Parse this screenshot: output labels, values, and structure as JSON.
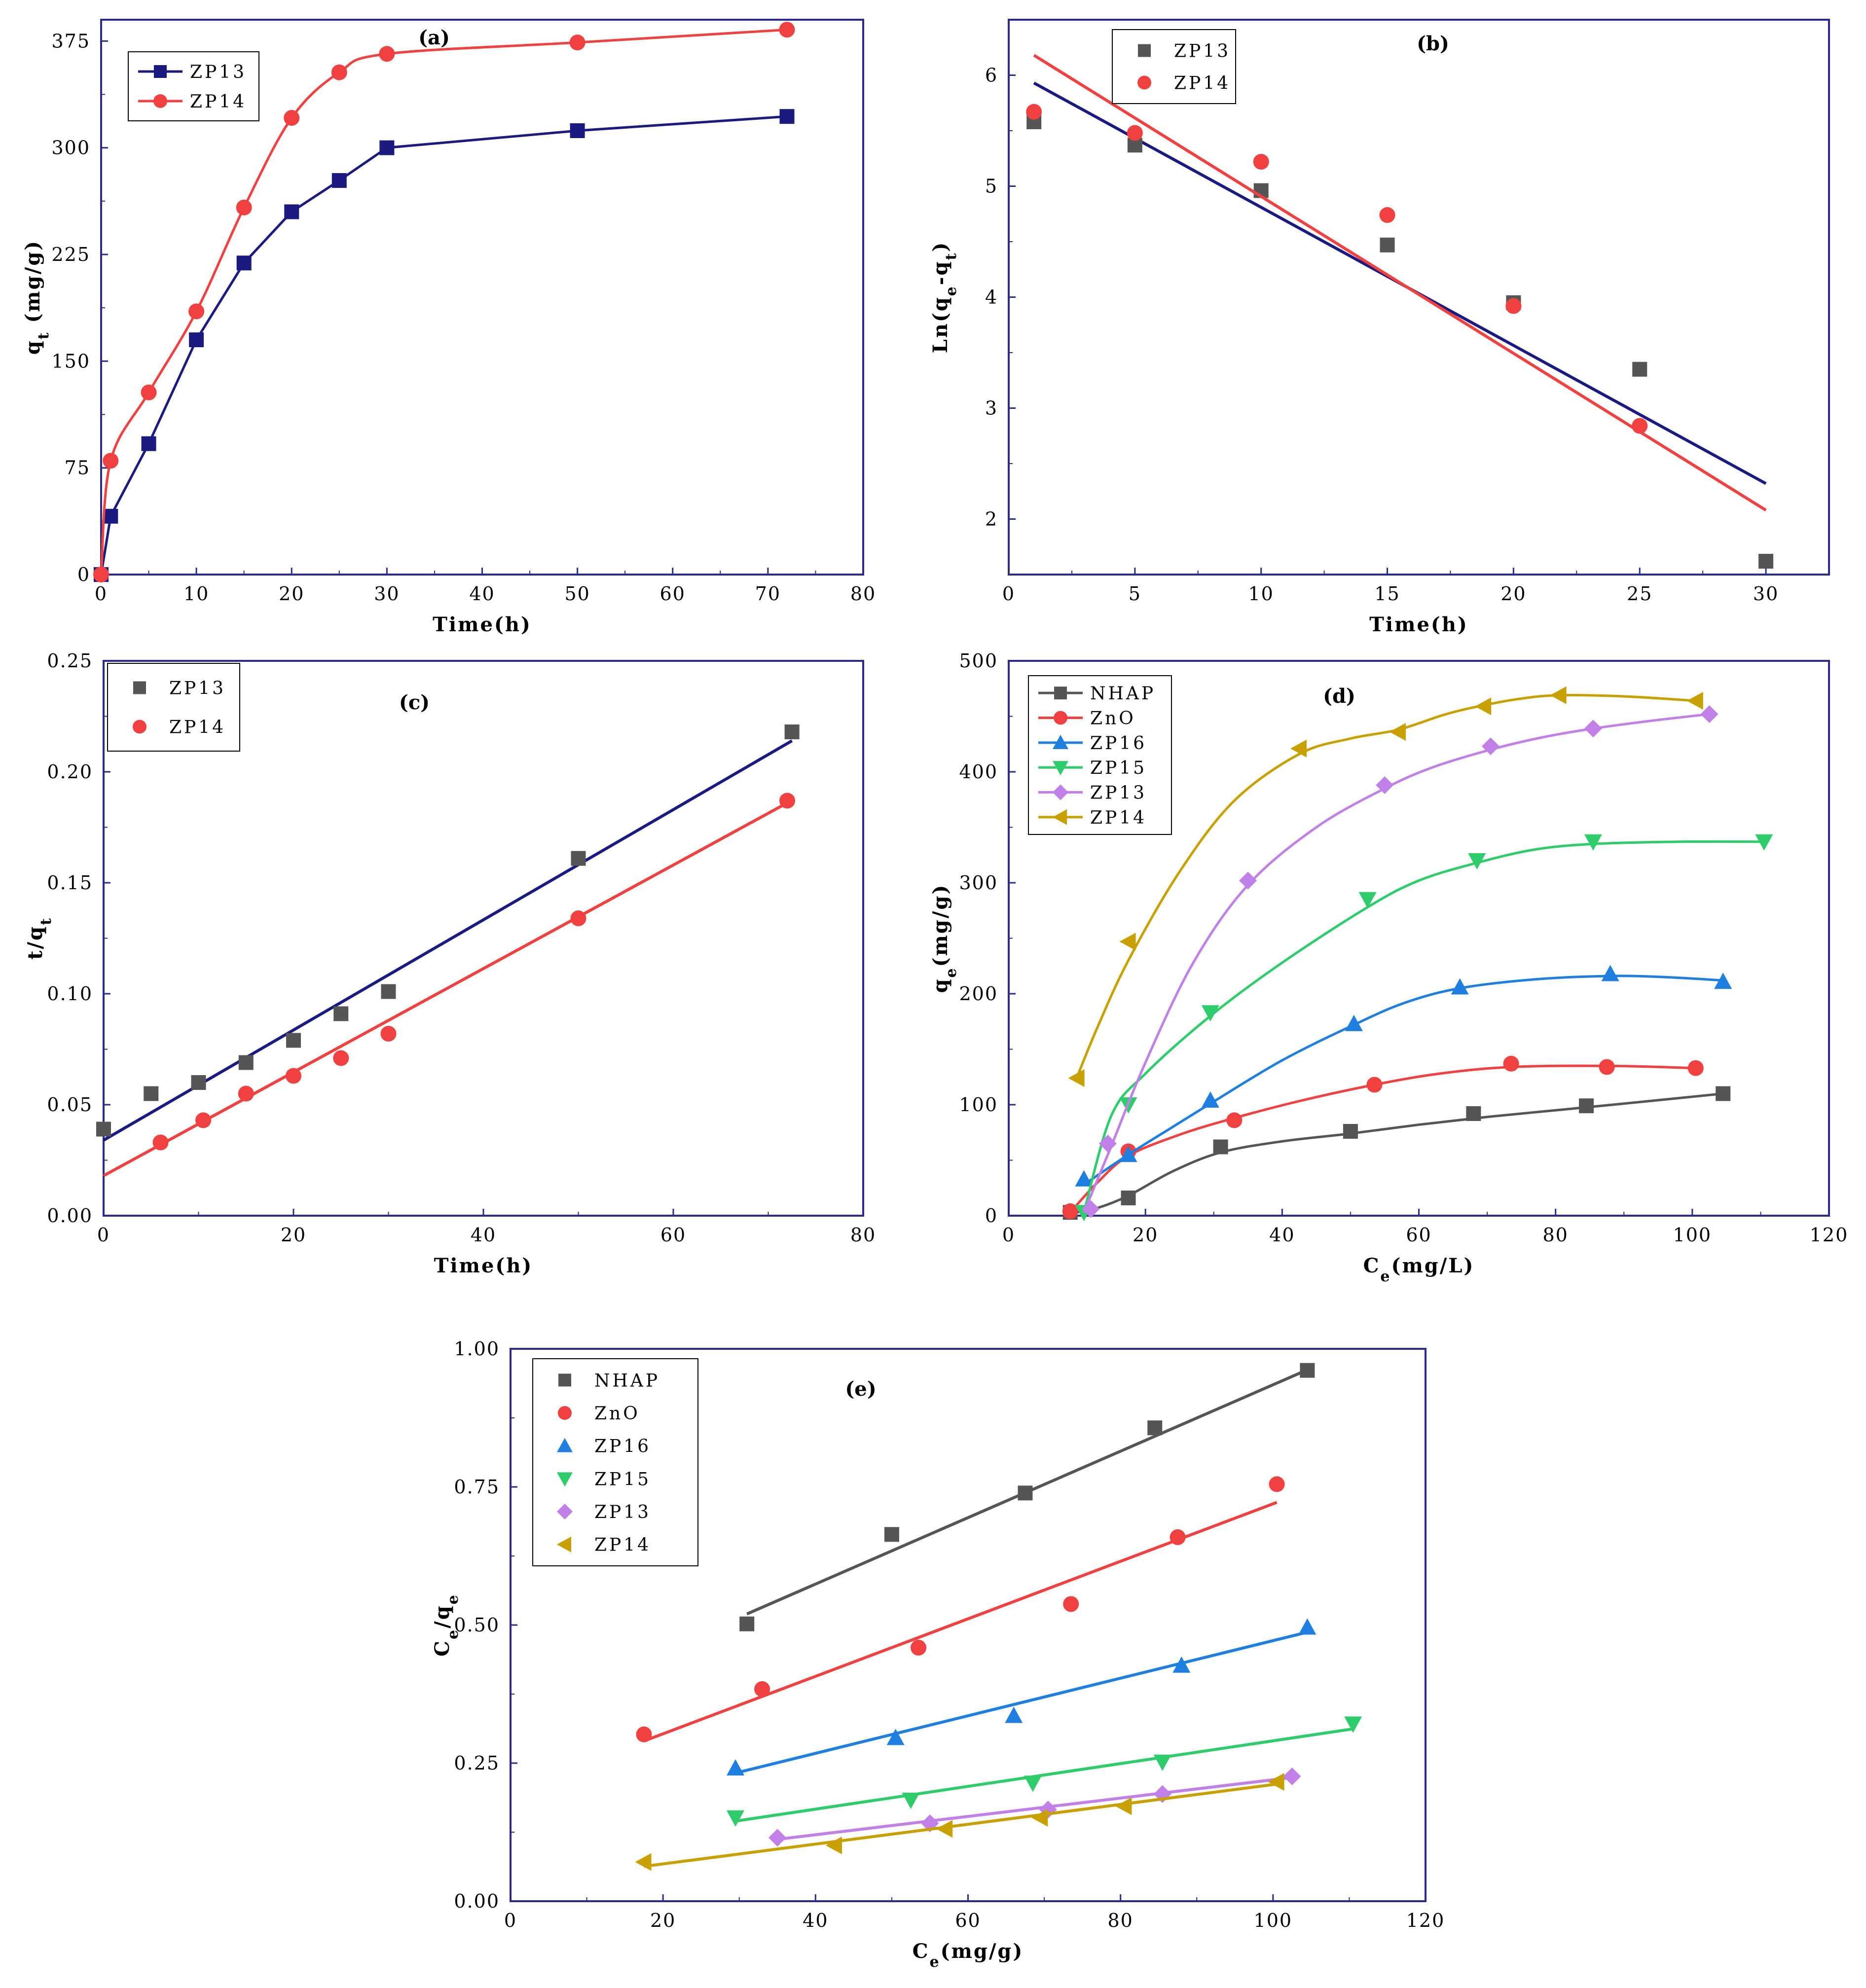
{
  "colors": {
    "frame": "#2b2b8f",
    "navy": "#1a1a80",
    "red": "#f04040",
    "gray": "#555555",
    "blue": "#1f7fe0",
    "green": "#2ecc6a",
    "purple": "#c080e8",
    "gold": "#c8a000"
  },
  "chart_data": [
    {
      "id": "a",
      "type": "line",
      "title": "(a)",
      "xlabel": "Time(h)",
      "ylabel": "q",
      "ylabel_sub": "t",
      "ylabel_tail": " (mg/g)",
      "xlim": [
        0,
        80
      ],
      "ylim": [
        0,
        390
      ],
      "xticks": [
        0,
        10,
        20,
        30,
        40,
        50,
        60,
        70,
        80
      ],
      "yticks": [
        0,
        75,
        150,
        225,
        300,
        375
      ],
      "legend_position": "top-left",
      "series": [
        {
          "name": "ZP13",
          "color": "navy",
          "marker": "square",
          "line": "polyline",
          "x": [
            0,
            1,
            5,
            10,
            15,
            20,
            25,
            30,
            50,
            72
          ],
          "y": [
            0,
            41,
            92,
            165,
            219,
            255,
            277,
            300,
            312,
            322
          ]
        },
        {
          "name": "ZP14",
          "color": "red",
          "marker": "circle",
          "line": "smooth",
          "x": [
            0,
            1,
            5,
            10,
            15,
            20,
            25,
            30,
            50,
            72
          ],
          "y": [
            0,
            80,
            128,
            185,
            258,
            321,
            353,
            366,
            374,
            383
          ]
        }
      ]
    },
    {
      "id": "b",
      "type": "scatter",
      "title": "(b)",
      "xlabel": "Time(h)",
      "ylabel": "Ln(q",
      "ylabel_sub": "e",
      "ylabel_tail": "-q",
      "ylabel_sub2": "t",
      "ylabel_end": ")",
      "xlim": [
        0,
        32.5
      ],
      "ylim": [
        1.5,
        6.5
      ],
      "xticks": [
        0,
        5,
        10,
        15,
        20,
        25,
        30
      ],
      "yticks": [
        2,
        3,
        4,
        5,
        6
      ],
      "legend_position": "top-left",
      "series": [
        {
          "name": "ZP13",
          "color": "gray",
          "marker": "square",
          "x": [
            1,
            5,
            10,
            15,
            20,
            25,
            30
          ],
          "y": [
            5.58,
            5.37,
            4.96,
            4.47,
            3.95,
            3.35,
            1.62
          ],
          "fit": {
            "color": "navy",
            "x": [
              1,
              30
            ],
            "y": [
              5.93,
              2.32
            ]
          }
        },
        {
          "name": "ZP14",
          "color": "red",
          "marker": "circle",
          "x": [
            1,
            5,
            10,
            15,
            20,
            25
          ],
          "y": [
            5.67,
            5.48,
            5.22,
            4.74,
            3.92,
            2.84
          ],
          "fit": {
            "color": "red",
            "x": [
              1,
              30
            ],
            "y": [
              6.18,
              2.08
            ]
          }
        }
      ]
    },
    {
      "id": "c",
      "type": "scatter",
      "title": "(c)",
      "xlabel": "Time(h)",
      "ylabel": "t/q",
      "ylabel_sub": "t",
      "ylabel_tail": "",
      "xlim": [
        0,
        80
      ],
      "ylim": [
        0,
        0.25
      ],
      "xticks": [
        0,
        20,
        40,
        60,
        80
      ],
      "yticks": [
        0.0,
        0.05,
        0.1,
        0.15,
        0.2,
        0.25
      ],
      "legend_position": "top-left",
      "series": [
        {
          "name": "ZP13",
          "color": "gray",
          "marker": "square",
          "x": [
            0,
            5,
            10,
            15,
            20,
            25,
            30,
            50,
            72.5
          ],
          "y": [
            0.039,
            0.055,
            0.06,
            0.069,
            0.079,
            0.091,
            0.101,
            0.161,
            0.218
          ],
          "fit": {
            "color": "navy",
            "x": [
              0,
              72.5
            ],
            "y": [
              0.034,
              0.214
            ]
          }
        },
        {
          "name": "ZP14",
          "color": "red",
          "marker": "circle",
          "x": [
            6,
            10.5,
            15,
            20,
            25,
            30,
            50,
            72
          ],
          "y": [
            0.033,
            0.043,
            0.055,
            0.063,
            0.071,
            0.082,
            0.134,
            0.187
          ],
          "fit": {
            "color": "red",
            "x": [
              0,
              72
            ],
            "y": [
              0.018,
              0.186
            ]
          }
        }
      ]
    },
    {
      "id": "d",
      "type": "line",
      "title": "(d)",
      "xlabel": "C",
      "xlabel_sub": "e",
      "xlabel_tail": "(mg/L)",
      "ylabel": "q",
      "ylabel_sub": "e",
      "ylabel_tail": "(mg/g)",
      "xlim": [
        0,
        120
      ],
      "ylim": [
        0,
        500
      ],
      "xticks": [
        0,
        20,
        40,
        60,
        80,
        100,
        120
      ],
      "yticks": [
        0,
        100,
        200,
        300,
        400,
        500
      ],
      "legend_position": "top-left",
      "series": [
        {
          "name": "NHAP",
          "color": "gray",
          "marker": "square",
          "x": [
            9,
            17.5,
            31,
            50,
            68,
            84.5,
            104.5
          ],
          "y": [
            3,
            16,
            62,
            76,
            92,
            99,
            110
          ],
          "curve": {
            "x": [
              9,
              13,
              17.5,
              24,
              31,
              40,
              50,
              60,
              70,
              80,
              90,
              104.5
            ],
            "y": [
              2,
              7,
              18,
              40,
              57,
              67,
              74,
              82,
              89,
              95,
              101,
              110
            ]
          }
        },
        {
          "name": "ZnO",
          "color": "red",
          "marker": "circle",
          "x": [
            9,
            17.5,
            33,
            53.5,
            73.5,
            87.5,
            100.5
          ],
          "y": [
            4,
            58,
            86,
            118,
            137,
            134,
            133
          ],
          "curve": {
            "x": [
              9,
              13,
              17.5,
              25,
              33,
              43,
              53.5,
              63,
              73.5,
              87.5,
              100.5
            ],
            "y": [
              3,
              30,
              54,
              73,
              88,
              104,
              118,
              128,
              134,
              135,
              133
            ]
          }
        },
        {
          "name": "ZP16",
          "color": "blue",
          "marker": "triangle-up",
          "x": [
            11,
            17.5,
            29.5,
            50.5,
            66,
            88,
            104.5
          ],
          "y": [
            33,
            55,
            104,
            173,
            206,
            218,
            211
          ],
          "curve": {
            "x": [
              11,
              17.5,
              24,
              29.5,
              40,
              50.5,
              58,
              66,
              77,
              88,
              96,
              104.5
            ],
            "y": [
              28,
              55,
              80,
              101,
              140,
              172,
              192,
              205,
              213,
              216,
              215,
              212
            ]
          }
        },
        {
          "name": "ZP15",
          "color": "green",
          "marker": "triangle-down",
          "x": [
            11,
            17.5,
            29.5,
            52.5,
            68.5,
            85.5,
            110.5
          ],
          "y": [
            3,
            100,
            183,
            285,
            320,
            337,
            337
          ],
          "curve": {
            "x": [
              11,
              15,
              20,
              29.5,
              40,
              52.5,
              60,
              68.5,
              77,
              85.5,
              98,
              110.5
            ],
            "y": [
              3,
              90,
              128,
              180,
              228,
              278,
              302,
              318,
              330,
              335,
              337,
              337
            ]
          }
        },
        {
          "name": "ZP13",
          "color": "purple",
          "marker": "diamond",
          "x": [
            12,
            14.5,
            35,
            55,
            70.5,
            85.5,
            102.5
          ],
          "y": [
            6,
            65,
            302,
            388,
            423,
            439,
            452
          ],
          "curve": {
            "x": [
              11,
              14.5,
              20,
              27,
              35,
              45,
              55,
              62,
              70.5,
              78,
              85.5,
              94,
              102.5
            ],
            "y": [
              3,
              55,
              138,
              228,
              298,
              350,
              385,
              404,
              420,
              431,
              439,
              446,
              452
            ]
          }
        },
        {
          "name": "ZP14",
          "color": "gold",
          "marker": "triangle-left",
          "x": [
            10,
            17.5,
            42.5,
            57,
            69.5,
            80.5,
            100.5
          ],
          "y": [
            124,
            247,
            421,
            436,
            459,
            469,
            464
          ],
          "curve": {
            "x": [
              10,
              13,
              17.5,
              25,
              33,
              42.5,
              50,
              57,
              64,
              69.5,
              75,
              80.5,
              90,
              100.5
            ],
            "y": [
              125,
              170,
              230,
              310,
              374,
              416,
              430,
              438,
              452,
              460,
              466,
              469,
              468,
              464
            ]
          }
        }
      ]
    },
    {
      "id": "e",
      "type": "scatter",
      "title": "(e)",
      "xlabel": "C",
      "xlabel_sub": "e",
      "xlabel_tail": "(mg/g)",
      "ylabel": "C",
      "ylabel_sub": "e",
      "ylabel_tail": "/q",
      "ylabel_sub2": "e",
      "ylabel_end": "",
      "xlim": [
        0,
        120
      ],
      "ylim": [
        0,
        1.0
      ],
      "xticks": [
        0,
        20,
        40,
        60,
        80,
        100,
        120
      ],
      "yticks": [
        0.0,
        0.25,
        0.5,
        0.75,
        1.0
      ],
      "legend_position": "top-left",
      "series": [
        {
          "name": "NHAP",
          "color": "gray",
          "marker": "square",
          "x": [
            31,
            50,
            67.5,
            84.5,
            104.5
          ],
          "y": [
            0.502,
            0.664,
            0.739,
            0.857,
            0.961
          ],
          "fit": {
            "color": "gray",
            "x": [
              31,
              104.5
            ],
            "y": [
              0.52,
              0.962
            ]
          }
        },
        {
          "name": "ZnO",
          "color": "red",
          "marker": "circle",
          "x": [
            17.5,
            33,
            53.5,
            73.5,
            87.5,
            100.5
          ],
          "y": [
            0.302,
            0.384,
            0.459,
            0.538,
            0.659,
            0.755
          ],
          "fit": {
            "color": "red",
            "x": [
              17.5,
              100.5
            ],
            "y": [
              0.29,
              0.722
            ]
          }
        },
        {
          "name": "ZP16",
          "color": "blue",
          "marker": "triangle-up",
          "x": [
            29.5,
            50.5,
            66,
            88,
            104.5
          ],
          "y": [
            0.241,
            0.296,
            0.336,
            0.427,
            0.496
          ],
          "fit": {
            "color": "blue",
            "x": [
              29.5,
              104.5
            ],
            "y": [
              0.232,
              0.487
            ]
          }
        },
        {
          "name": "ZP15",
          "color": "green",
          "marker": "triangle-down",
          "x": [
            29.5,
            52.5,
            68.5,
            85.5,
            110.5
          ],
          "y": [
            0.151,
            0.183,
            0.214,
            0.252,
            0.321
          ],
          "fit": {
            "color": "green",
            "x": [
              29.5,
              110.5
            ],
            "y": [
              0.145,
              0.312
            ]
          }
        },
        {
          "name": "ZP13",
          "color": "purple",
          "marker": "diamond",
          "x": [
            35,
            55,
            70.5,
            85.5,
            102.5
          ],
          "y": [
            0.115,
            0.141,
            0.166,
            0.194,
            0.226
          ],
          "fit": {
            "color": "purple",
            "x": [
              35,
              102.5
            ],
            "y": [
              0.112,
              0.224
            ]
          }
        },
        {
          "name": "ZP14",
          "color": "gold",
          "marker": "triangle-left",
          "x": [
            17.5,
            42.5,
            57,
            69.5,
            80.5,
            100.5
          ],
          "y": [
            0.071,
            0.101,
            0.131,
            0.151,
            0.172,
            0.216
          ],
          "fit": {
            "color": "gold",
            "x": [
              17.5,
              100.5
            ],
            "y": [
              0.063,
              0.212
            ]
          }
        }
      ]
    }
  ]
}
